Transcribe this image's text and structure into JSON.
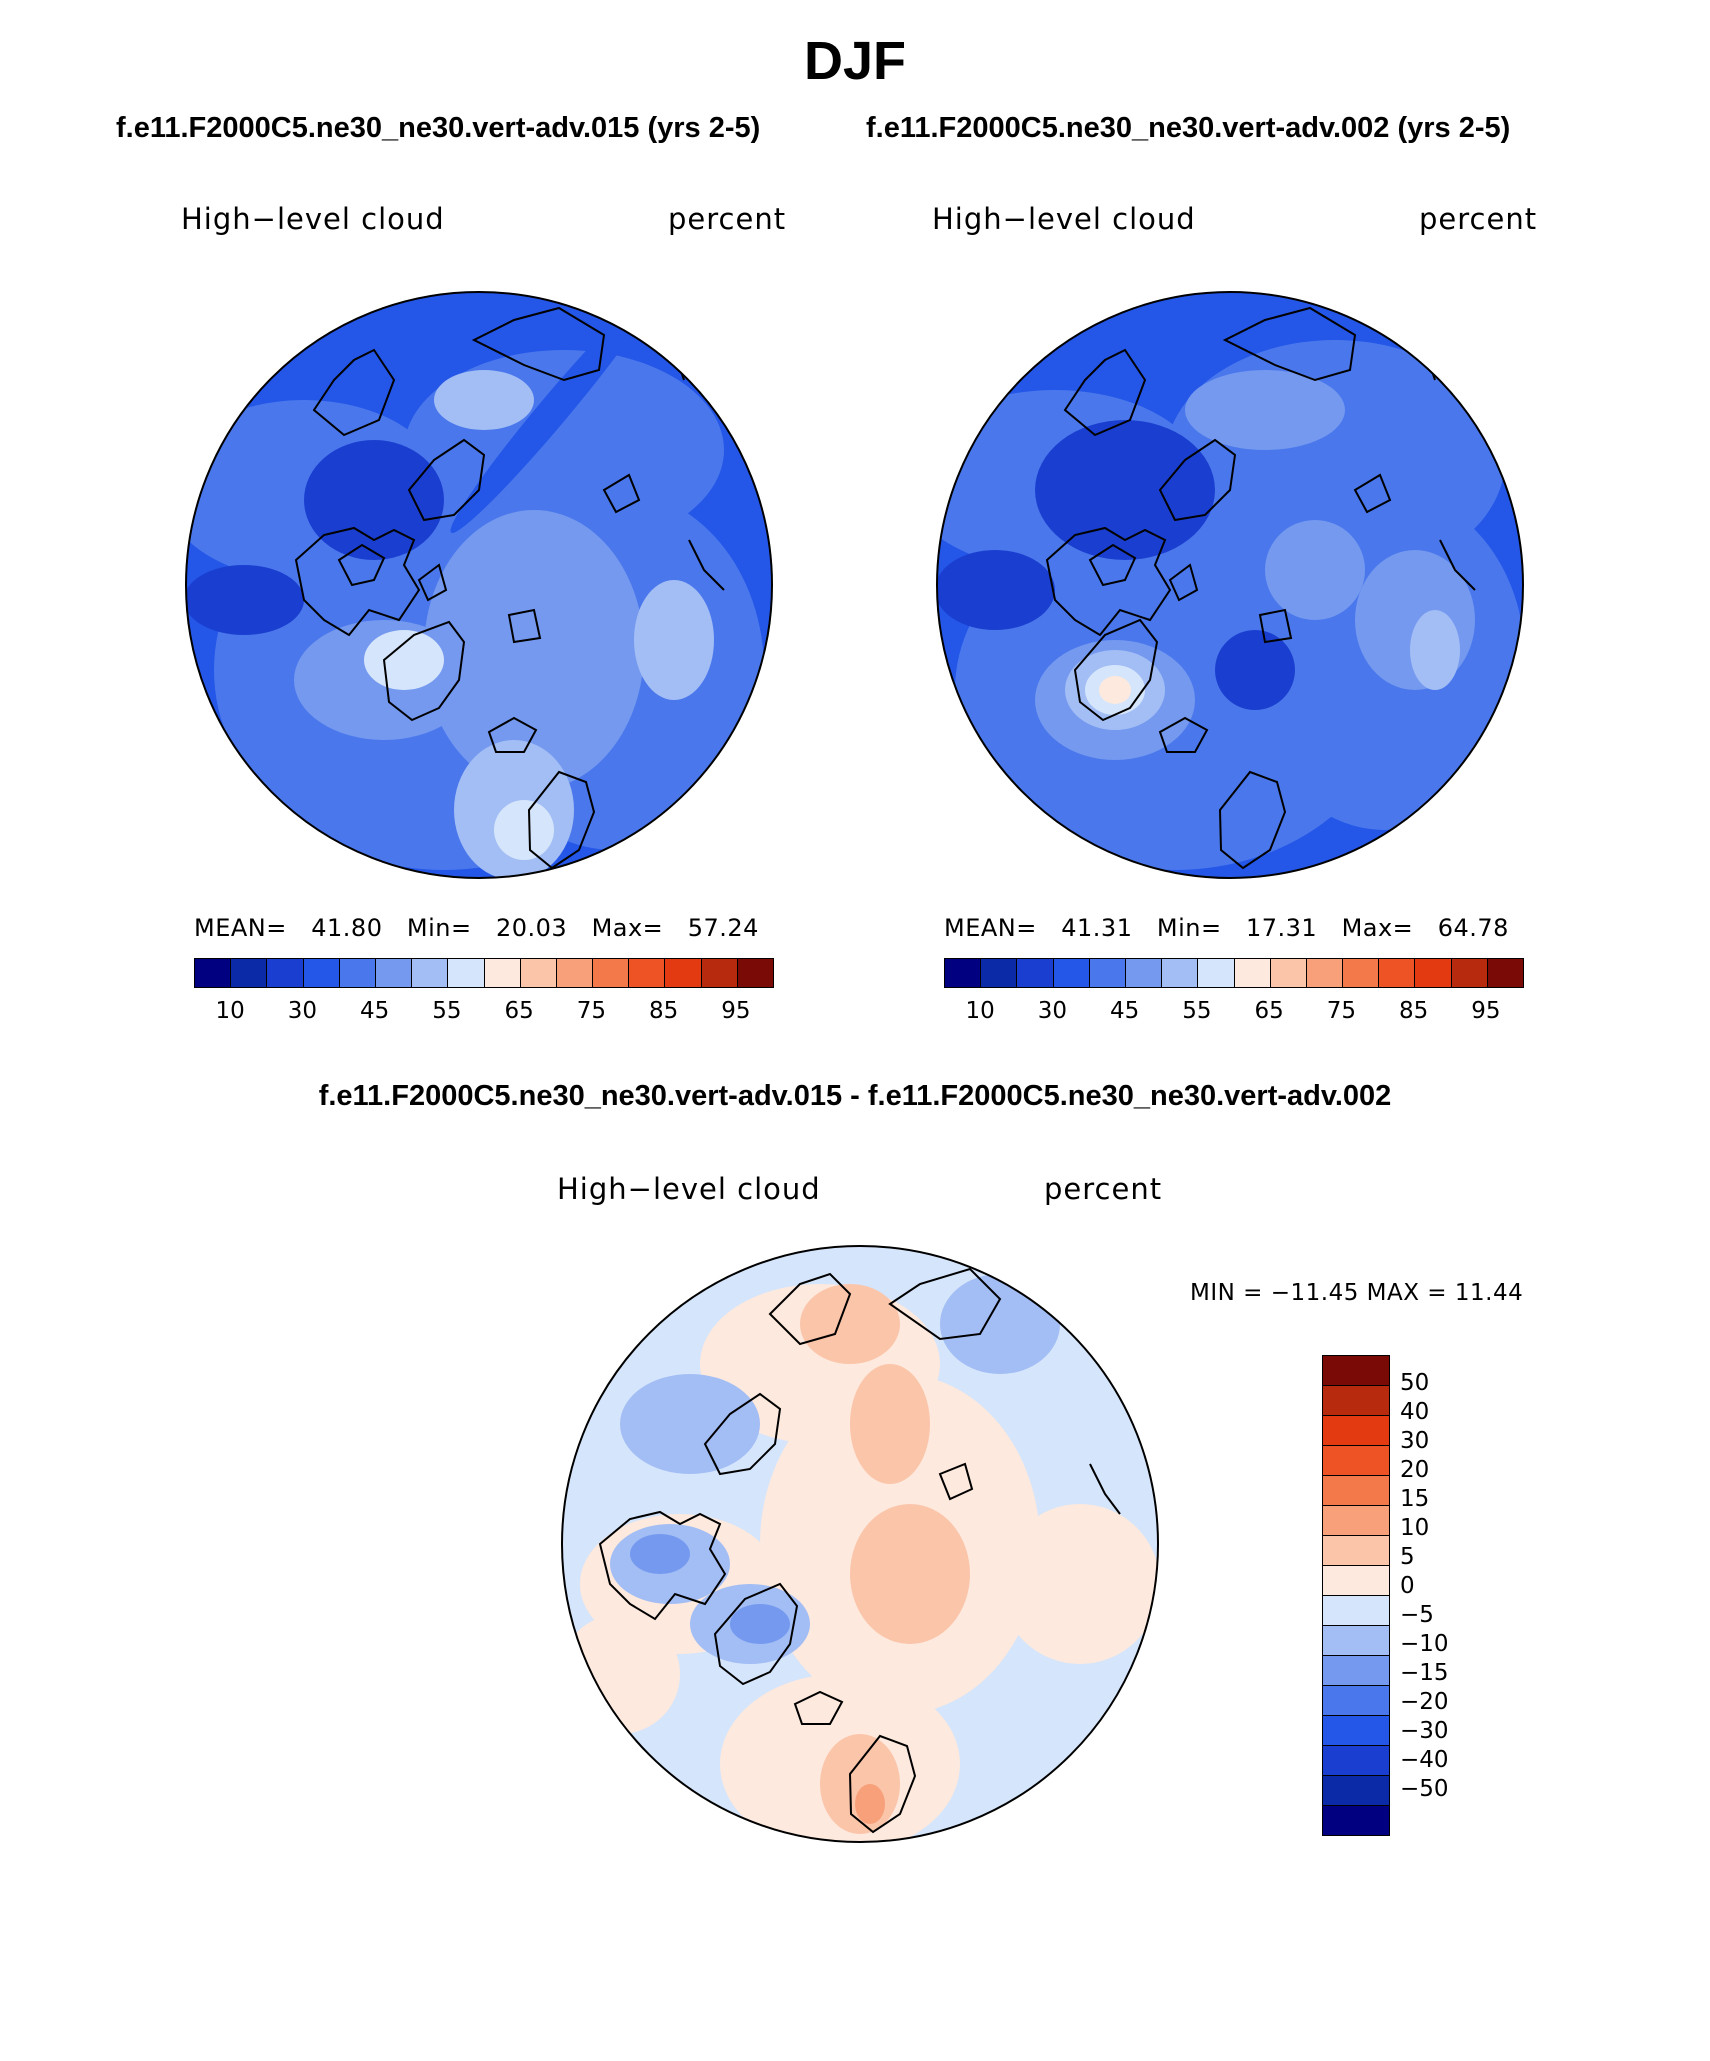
{
  "title": "DJF",
  "top_panels": [
    {
      "run_title": "f.e11.F2000C5.ne30_ne30.vert-adv.015 (yrs 2-5)",
      "variable": "High−level cloud",
      "units": "percent",
      "mean_label": "MEAN=",
      "mean": "41.80",
      "min_label": "Min=",
      "min": "20.03",
      "max_label": "Max=",
      "max": "57.24"
    },
    {
      "run_title": "f.e11.F2000C5.ne30_ne30.vert-adv.002 (yrs 2-5)",
      "variable": "High−level cloud",
      "units": "percent",
      "mean_label": "MEAN=",
      "mean": "41.31",
      "min_label": "Min=",
      "min": "17.31",
      "max_label": "Max=",
      "max": "64.78"
    }
  ],
  "colorbar": {
    "colors": [
      "#000080",
      "#0a2aa8",
      "#1a3fd0",
      "#2456e8",
      "#4a78ec",
      "#7499ef",
      "#a3bef5",
      "#d5e5fb",
      "#fde9dd",
      "#fbc5aa",
      "#f7a07a",
      "#f3784a",
      "#ee5325",
      "#e43a12",
      "#b82a0e",
      "#7a0a06"
    ],
    "labels": [
      "10",
      "30",
      "45",
      "55",
      "65",
      "75",
      "85",
      "95"
    ]
  },
  "difference_panel": {
    "title": "f.e11.F2000C5.ne30_ne30.vert-adv.015 - f.e11.F2000C5.ne30_ne30.vert-adv.002",
    "variable": "High−level cloud",
    "units": "percent",
    "min_max_text": "MIN = −11.45 MAX =   11.44"
  },
  "difference_colorbar": {
    "colors": [
      "#7a0a06",
      "#b82a0e",
      "#e43a12",
      "#ee5325",
      "#f3784a",
      "#f7a07a",
      "#fbc5aa",
      "#fde9dd",
      "#d5e5fb",
      "#a3bef5",
      "#7499ef",
      "#4a78ec",
      "#2456e8",
      "#1a3fd0",
      "#0a2aa8",
      "#000080"
    ],
    "labels": [
      "50",
      "40",
      "30",
      "20",
      "15",
      "10",
      "5",
      "0",
      "−5",
      "−10",
      "−15",
      "−20",
      "−30",
      "−40",
      "−50"
    ]
  }
}
